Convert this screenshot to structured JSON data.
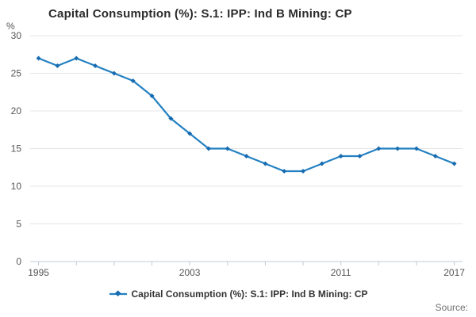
{
  "title": "Capital Consumption (%): S.1: IPP: Ind B Mining: CP",
  "y_axis_unit_label": "%",
  "source_label": "Source:",
  "legend": {
    "label": "Capital Consumption (%): S.1: IPP: Ind B Mining: CP",
    "marker": "line-with-diamond"
  },
  "colors": {
    "line": "#2380c1",
    "marker": "#176bb0",
    "grid": "#e4e4e4",
    "axis": "#bccbd9",
    "title_text": "#2b2b2b",
    "tick_text": "#565656",
    "legend_text": "#333333",
    "source_text": "#6f6f6f"
  },
  "chart_data": {
    "type": "line",
    "title": "Capital Consumption (%): S.1: IPP: Ind B Mining: CP",
    "xlabel": "",
    "ylabel": "%",
    "ylim": [
      0,
      30
    ],
    "y_ticks": [
      0,
      5,
      10,
      15,
      20,
      25,
      30
    ],
    "x": [
      1995,
      1996,
      1997,
      1998,
      1999,
      2000,
      2001,
      2002,
      2003,
      2004,
      2005,
      2006,
      2007,
      2008,
      2009,
      2010,
      2011,
      2012,
      2013,
      2014,
      2015,
      2016,
      2017
    ],
    "x_tick_labels": [
      1995,
      2003,
      2011,
      2017
    ],
    "x_minor_tick_step": 2,
    "grid": "horizontal",
    "legend_position": "bottom",
    "series": [
      {
        "name": "Capital Consumption (%): S.1: IPP: Ind B Mining: CP",
        "marker": "diamond",
        "values": [
          27,
          26,
          27,
          26,
          25,
          24,
          22,
          19,
          17,
          15,
          15,
          14,
          13,
          12,
          12,
          13,
          14,
          14,
          15,
          15,
          15,
          14,
          13
        ]
      }
    ]
  }
}
